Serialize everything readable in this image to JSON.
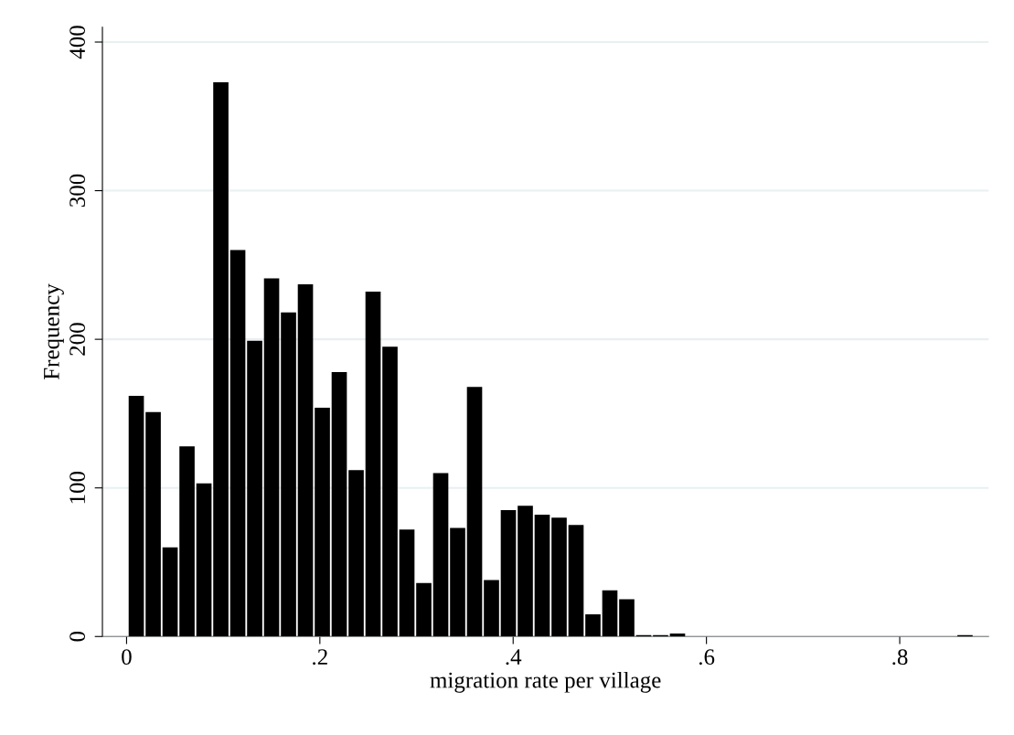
{
  "chart_data": {
    "type": "histogram",
    "xlabel": "migration rate per village",
    "ylabel": "Frequency",
    "bins": [
      0.0013,
      0.0188,
      0.0363,
      0.0538,
      0.0713,
      0.0888,
      0.1063,
      0.1238,
      0.1413,
      0.1588,
      0.1763,
      0.1938,
      0.2113,
      0.2288,
      0.2463,
      0.2638,
      0.2813,
      0.2988,
      0.3163,
      0.3338,
      0.3513,
      0.3688,
      0.3863,
      0.4038,
      0.4213,
      0.4388,
      0.4563,
      0.4738,
      0.4913,
      0.5088,
      0.5263,
      0.5438,
      0.5613,
      0.5788,
      0.5963,
      0.6138,
      0.6313,
      0.6488,
      0.6663,
      0.6838,
      0.7013,
      0.7188,
      0.7363,
      0.7538,
      0.7713,
      0.7888,
      0.8063,
      0.8238,
      0.8413,
      0.8588,
      0.8763
    ],
    "values": [
      162,
      151,
      60,
      128,
      103,
      373,
      260,
      199,
      241,
      218,
      237,
      154,
      178,
      112,
      232,
      195,
      72,
      36,
      110,
      73,
      168,
      38,
      85,
      88,
      82,
      80,
      75,
      15,
      31,
      25,
      1,
      1,
      2,
      0,
      0,
      0,
      0,
      0,
      0,
      0,
      0,
      0,
      0,
      0,
      0,
      0,
      0,
      0,
      0,
      1
    ],
    "color": "#000000",
    "xlim": [
      -0.025,
      0.892
    ],
    "ylim": [
      0,
      410
    ],
    "xticks": [
      0,
      {
        "value": 0.2,
        "label": ".2"
      },
      {
        "value": 0.4,
        "label": ".4"
      },
      {
        "value": 0.6,
        "label": ".6"
      },
      {
        "value": 0.8,
        "label": ".8"
      }
    ],
    "yticks": [
      0,
      100,
      200,
      300,
      400
    ],
    "grid": "y",
    "legend": false
  }
}
